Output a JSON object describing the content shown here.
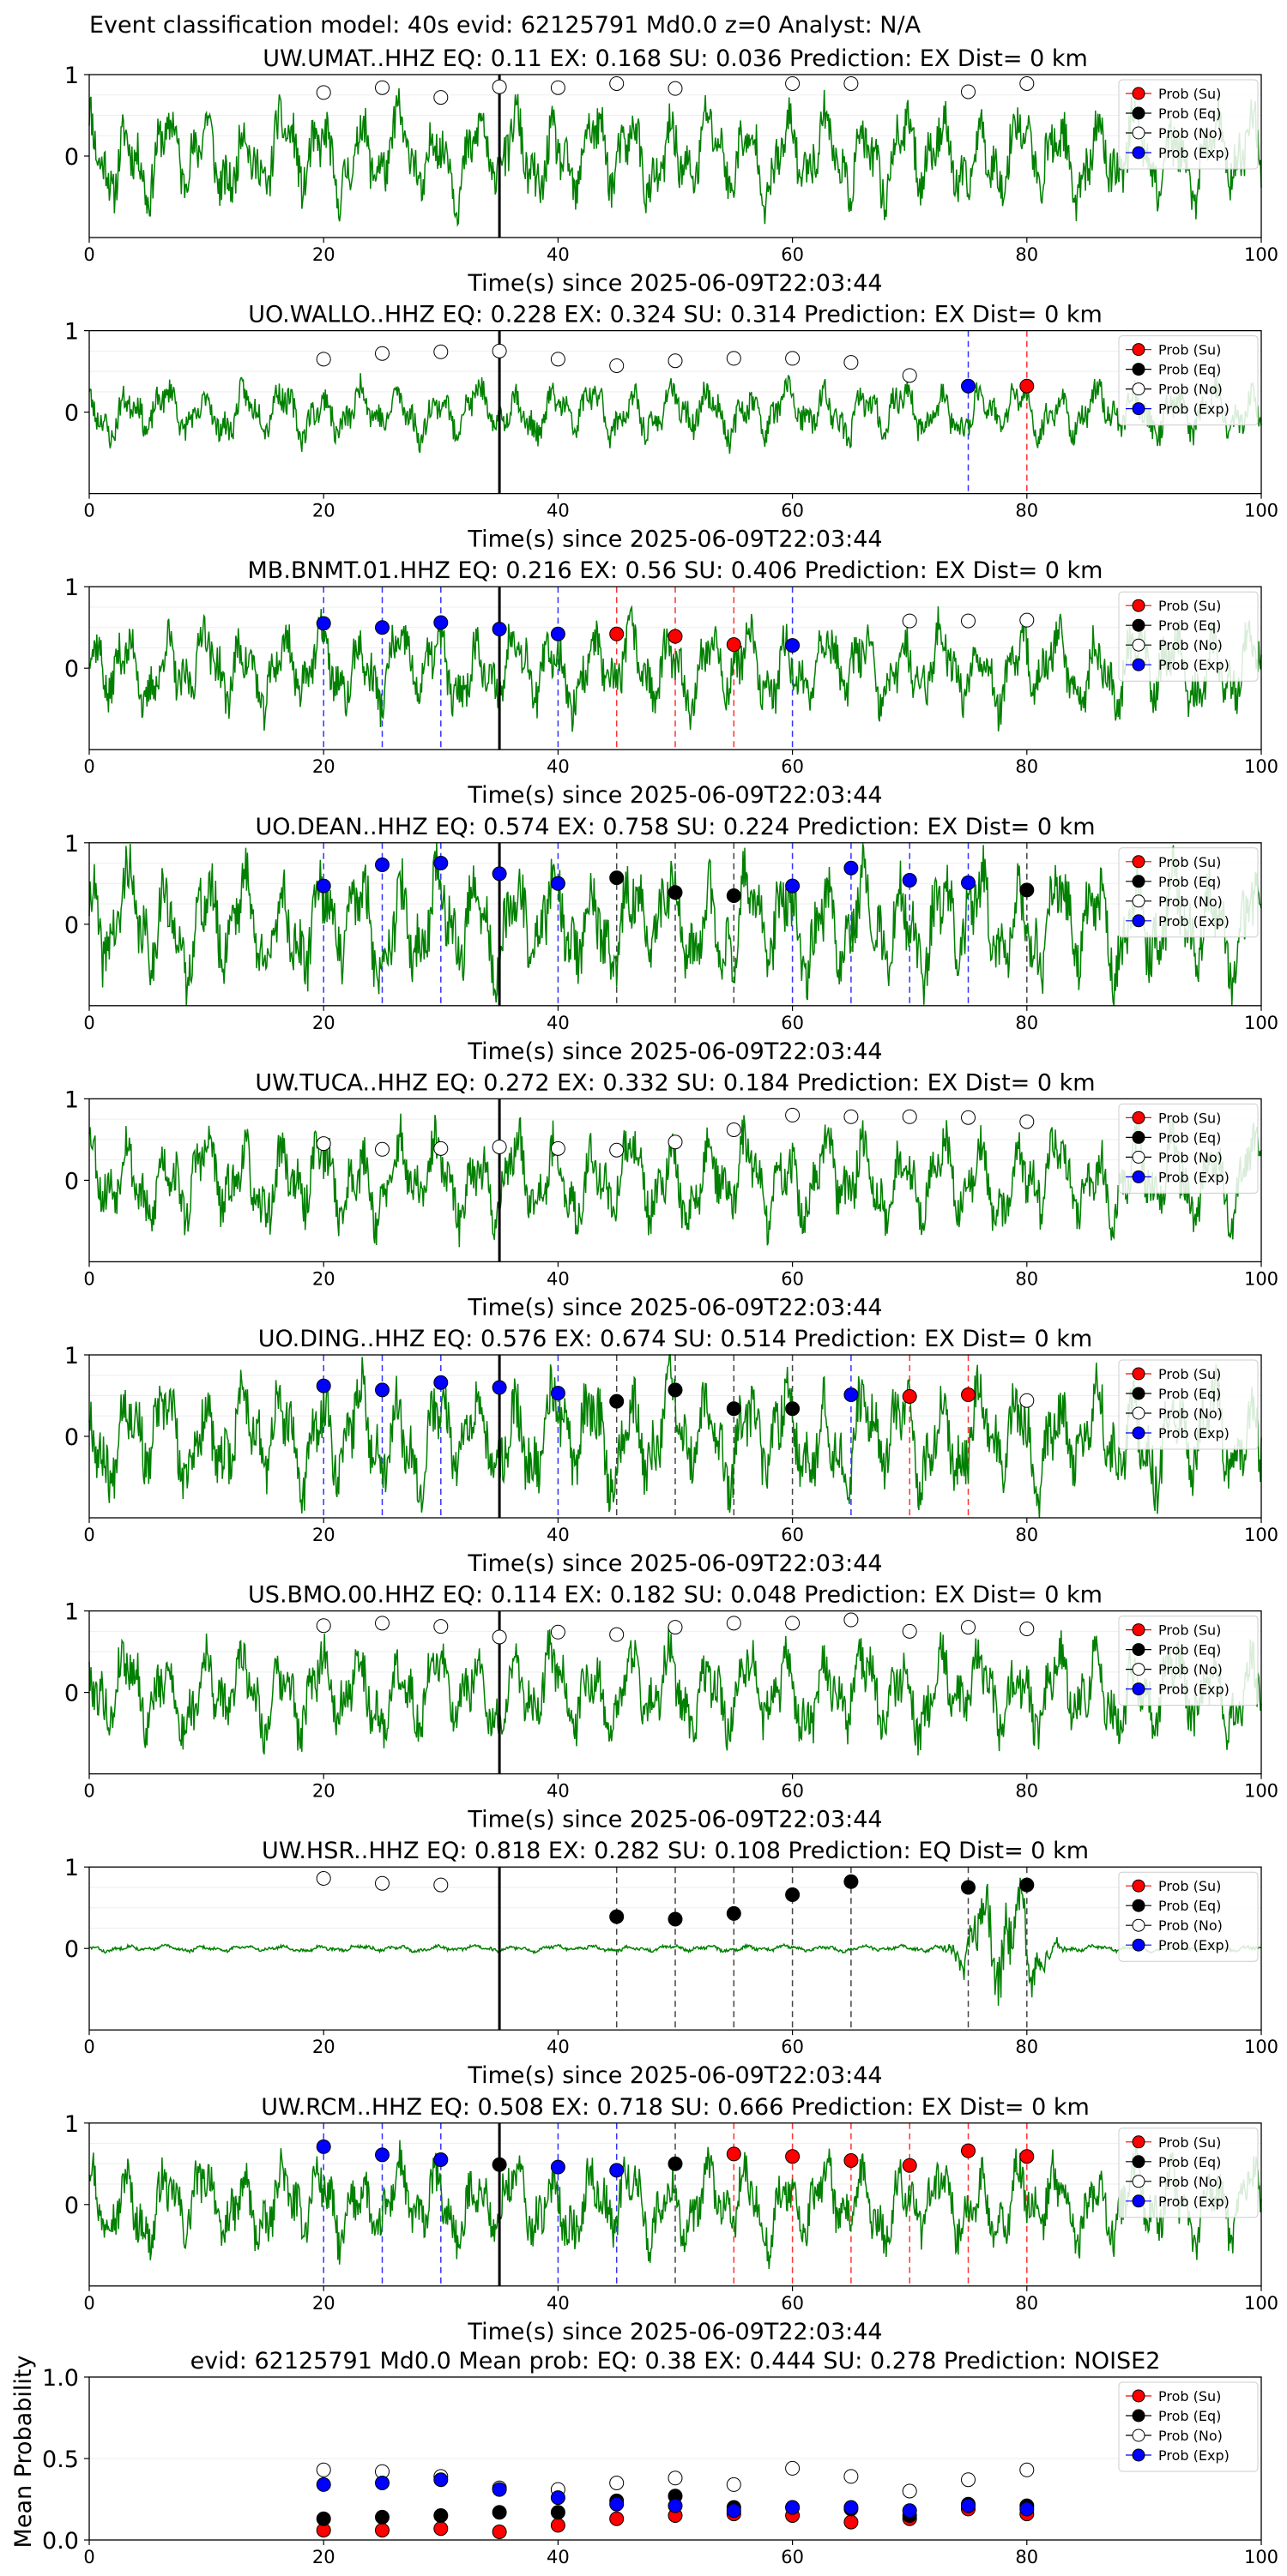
{
  "figure": {
    "suptitle": "Event classification model: 40s evid: 62125791 Md0.0 z=0 Analyst: N/A",
    "legend_entries": [
      "Prob (Su)",
      "Prob (Eq)",
      "Prob (No)",
      "Prob (Exp)"
    ],
    "colors": {
      "waveform": "#008000",
      "su": "#ff0000",
      "eq": "#000000",
      "no": "#ffffff",
      "exp": "#0000ff",
      "su_line": "#ff3333",
      "exp_line": "#3333ff",
      "eq_line": "#444444"
    }
  },
  "chart_data": [
    {
      "type": "line",
      "title": "UW.UMAT..HHZ   EQ: 0.11  EX: 0.168  SU: 0.036   Prediction: EX    Dist= 0 km",
      "xlabel": "Time(s) since 2025-06-09T22:03:44",
      "xlim": [
        0,
        100
      ],
      "ylim": [
        -1,
        1
      ],
      "xticks": [
        "0",
        "20",
        "40",
        "60",
        "80",
        "100"
      ],
      "yticks": [
        "1",
        "0"
      ],
      "pick_x": 35,
      "amplitude": 0.6,
      "seed": 11,
      "legend": "top-right",
      "points": [
        {
          "x": 20,
          "y": 0.78,
          "cls": "no"
        },
        {
          "x": 25,
          "y": 0.84,
          "cls": "no"
        },
        {
          "x": 30,
          "y": 0.72,
          "cls": "no"
        },
        {
          "x": 35,
          "y": 0.85,
          "cls": "no"
        },
        {
          "x": 40,
          "y": 0.84,
          "cls": "no"
        },
        {
          "x": 45,
          "y": 0.89,
          "cls": "no"
        },
        {
          "x": 50,
          "y": 0.83,
          "cls": "no"
        },
        {
          "x": 60,
          "y": 0.89,
          "cls": "no"
        },
        {
          "x": 65,
          "y": 0.89,
          "cls": "no"
        },
        {
          "x": 75,
          "y": 0.79,
          "cls": "no"
        },
        {
          "x": 80,
          "y": 0.89,
          "cls": "no"
        }
      ]
    },
    {
      "type": "line",
      "title": "UO.WALLO..HHZ   EQ: 0.228  EX: 0.324  SU: 0.314   Prediction: EX    Dist= 0 km",
      "xlabel": "Time(s) since 2025-06-09T22:03:44",
      "xlim": [
        0,
        100
      ],
      "ylim": [
        -1,
        1
      ],
      "xticks": [
        "0",
        "20",
        "40",
        "60",
        "80",
        "100"
      ],
      "yticks": [
        "1",
        "0"
      ],
      "pick_x": 35,
      "amplitude": 0.35,
      "seed": 23,
      "legend": "top-right",
      "points": [
        {
          "x": 20,
          "y": 0.65,
          "cls": "no"
        },
        {
          "x": 25,
          "y": 0.72,
          "cls": "no"
        },
        {
          "x": 30,
          "y": 0.74,
          "cls": "no"
        },
        {
          "x": 35,
          "y": 0.75,
          "cls": "no"
        },
        {
          "x": 40,
          "y": 0.65,
          "cls": "no"
        },
        {
          "x": 45,
          "y": 0.57,
          "cls": "no"
        },
        {
          "x": 50,
          "y": 0.63,
          "cls": "no"
        },
        {
          "x": 55,
          "y": 0.66,
          "cls": "no"
        },
        {
          "x": 60,
          "y": 0.66,
          "cls": "no"
        },
        {
          "x": 65,
          "y": 0.61,
          "cls": "no"
        },
        {
          "x": 70,
          "y": 0.45,
          "cls": "no"
        },
        {
          "x": 75,
          "y": 0.32,
          "cls": "exp"
        },
        {
          "x": 80,
          "y": 0.32,
          "cls": "su"
        }
      ]
    },
    {
      "type": "line",
      "title": "MB.BNMT.01.HHZ   EQ: 0.216  EX: 0.56  SU: 0.406   Prediction: EX    Dist= 0 km",
      "xlabel": "Time(s) since 2025-06-09T22:03:44",
      "xlim": [
        0,
        100
      ],
      "ylim": [
        -1,
        1
      ],
      "xticks": [
        "0",
        "20",
        "40",
        "60",
        "80",
        "100"
      ],
      "yticks": [
        "1",
        "0"
      ],
      "pick_x": 35,
      "amplitude": 0.55,
      "seed": 37,
      "legend": "top-right",
      "points": [
        {
          "x": 20,
          "y": 0.55,
          "cls": "exp"
        },
        {
          "x": 25,
          "y": 0.5,
          "cls": "exp"
        },
        {
          "x": 30,
          "y": 0.56,
          "cls": "exp"
        },
        {
          "x": 35,
          "y": 0.48,
          "cls": "exp"
        },
        {
          "x": 40,
          "y": 0.42,
          "cls": "exp"
        },
        {
          "x": 45,
          "y": 0.42,
          "cls": "su"
        },
        {
          "x": 50,
          "y": 0.39,
          "cls": "su"
        },
        {
          "x": 55,
          "y": 0.29,
          "cls": "su"
        },
        {
          "x": 60,
          "y": 0.28,
          "cls": "exp"
        },
        {
          "x": 70,
          "y": 0.58,
          "cls": "no"
        },
        {
          "x": 75,
          "y": 0.58,
          "cls": "no"
        },
        {
          "x": 80,
          "y": 0.59,
          "cls": "no"
        }
      ]
    },
    {
      "type": "line",
      "title": "UO.DEAN..HHZ   EQ: 0.574  EX: 0.758  SU: 0.224   Prediction: EX    Dist= 0 km",
      "xlabel": "Time(s) since 2025-06-09T22:03:44",
      "xlim": [
        0,
        100
      ],
      "ylim": [
        -1,
        1
      ],
      "xticks": [
        "0",
        "20",
        "40",
        "60",
        "80",
        "100"
      ],
      "yticks": [
        "1",
        "0"
      ],
      "pick_x": 35,
      "amplitude": 0.75,
      "seed": 41,
      "legend": "top-right",
      "points": [
        {
          "x": 20,
          "y": 0.47,
          "cls": "exp"
        },
        {
          "x": 25,
          "y": 0.73,
          "cls": "exp"
        },
        {
          "x": 30,
          "y": 0.75,
          "cls": "exp"
        },
        {
          "x": 35,
          "y": 0.62,
          "cls": "exp"
        },
        {
          "x": 40,
          "y": 0.5,
          "cls": "exp"
        },
        {
          "x": 45,
          "y": 0.57,
          "cls": "eq"
        },
        {
          "x": 50,
          "y": 0.39,
          "cls": "eq"
        },
        {
          "x": 55,
          "y": 0.35,
          "cls": "eq"
        },
        {
          "x": 60,
          "y": 0.47,
          "cls": "exp"
        },
        {
          "x": 65,
          "y": 0.69,
          "cls": "exp"
        },
        {
          "x": 70,
          "y": 0.54,
          "cls": "exp"
        },
        {
          "x": 75,
          "y": 0.51,
          "cls": "exp"
        },
        {
          "x": 80,
          "y": 0.42,
          "cls": "eq"
        }
      ]
    },
    {
      "type": "line",
      "title": "UW.TUCA..HHZ   EQ: 0.272  EX: 0.332  SU: 0.184   Prediction: EX    Dist= 0 km",
      "xlabel": "Time(s) since 2025-06-09T22:03:44",
      "xlim": [
        0,
        100
      ],
      "ylim": [
        -1,
        1
      ],
      "xticks": [
        "0",
        "20",
        "40",
        "60",
        "80",
        "100"
      ],
      "yticks": [
        "1",
        "0"
      ],
      "pick_x": 35,
      "amplitude": 0.6,
      "seed": 53,
      "legend": "top-right",
      "points": [
        {
          "x": 20,
          "y": 0.45,
          "cls": "no"
        },
        {
          "x": 25,
          "y": 0.38,
          "cls": "no"
        },
        {
          "x": 30,
          "y": 0.39,
          "cls": "no"
        },
        {
          "x": 35,
          "y": 0.41,
          "cls": "no"
        },
        {
          "x": 40,
          "y": 0.39,
          "cls": "no"
        },
        {
          "x": 45,
          "y": 0.37,
          "cls": "no"
        },
        {
          "x": 50,
          "y": 0.47,
          "cls": "no"
        },
        {
          "x": 55,
          "y": 0.62,
          "cls": "no"
        },
        {
          "x": 60,
          "y": 0.8,
          "cls": "no"
        },
        {
          "x": 65,
          "y": 0.78,
          "cls": "no"
        },
        {
          "x": 70,
          "y": 0.78,
          "cls": "no"
        },
        {
          "x": 75,
          "y": 0.77,
          "cls": "no"
        },
        {
          "x": 80,
          "y": 0.72,
          "cls": "no"
        }
      ]
    },
    {
      "type": "line",
      "title": "UO.DING..HHZ   EQ: 0.576  EX: 0.674  SU: 0.514   Prediction: EX    Dist= 0 km",
      "xlabel": "Time(s) since 2025-06-09T22:03:44",
      "xlim": [
        0,
        100
      ],
      "ylim": [
        -1,
        1
      ],
      "xticks": [
        "0",
        "20",
        "40",
        "60",
        "80",
        "100"
      ],
      "yticks": [
        "1",
        "0"
      ],
      "pick_x": 35,
      "amplitude": 0.7,
      "seed": 67,
      "legend": "top-right",
      "points": [
        {
          "x": 20,
          "y": 0.62,
          "cls": "exp"
        },
        {
          "x": 25,
          "y": 0.57,
          "cls": "exp"
        },
        {
          "x": 30,
          "y": 0.66,
          "cls": "exp"
        },
        {
          "x": 35,
          "y": 0.6,
          "cls": "exp"
        },
        {
          "x": 40,
          "y": 0.53,
          "cls": "exp"
        },
        {
          "x": 45,
          "y": 0.43,
          "cls": "eq"
        },
        {
          "x": 50,
          "y": 0.57,
          "cls": "eq"
        },
        {
          "x": 55,
          "y": 0.34,
          "cls": "eq"
        },
        {
          "x": 60,
          "y": 0.34,
          "cls": "eq"
        },
        {
          "x": 65,
          "y": 0.51,
          "cls": "exp"
        },
        {
          "x": 70,
          "y": 0.49,
          "cls": "su"
        },
        {
          "x": 75,
          "y": 0.51,
          "cls": "su"
        },
        {
          "x": 80,
          "y": 0.44,
          "cls": "no"
        }
      ]
    },
    {
      "type": "line",
      "title": "US.BMO.00.HHZ   EQ: 0.114  EX: 0.182  SU: 0.048   Prediction: EX    Dist= 0 km",
      "xlabel": "Time(s) since 2025-06-09T22:03:44",
      "xlim": [
        0,
        100
      ],
      "ylim": [
        -1,
        1
      ],
      "xticks": [
        "0",
        "20",
        "40",
        "60",
        "80",
        "100"
      ],
      "yticks": [
        "1",
        "0"
      ],
      "pick_x": 35,
      "amplitude": 0.6,
      "seed": 79,
      "legend": "top-right",
      "points": [
        {
          "x": 20,
          "y": 0.82,
          "cls": "no"
        },
        {
          "x": 25,
          "y": 0.85,
          "cls": "no"
        },
        {
          "x": 30,
          "y": 0.81,
          "cls": "no"
        },
        {
          "x": 35,
          "y": 0.68,
          "cls": "no"
        },
        {
          "x": 40,
          "y": 0.74,
          "cls": "no"
        },
        {
          "x": 45,
          "y": 0.71,
          "cls": "no"
        },
        {
          "x": 50,
          "y": 0.8,
          "cls": "no"
        },
        {
          "x": 55,
          "y": 0.85,
          "cls": "no"
        },
        {
          "x": 60,
          "y": 0.85,
          "cls": "no"
        },
        {
          "x": 65,
          "y": 0.89,
          "cls": "no"
        },
        {
          "x": 70,
          "y": 0.75,
          "cls": "no"
        },
        {
          "x": 75,
          "y": 0.8,
          "cls": "no"
        },
        {
          "x": 80,
          "y": 0.78,
          "cls": "no"
        }
      ]
    },
    {
      "type": "line",
      "title": "UW.HSR..HHZ   EQ: 0.818  EX: 0.282  SU: 0.108   Prediction: EQ    Dist= 0 km",
      "xlabel": "Time(s) since 2025-06-09T22:03:44",
      "xlim": [
        0,
        100
      ],
      "ylim": [
        -1,
        1
      ],
      "xticks": [
        "0",
        "20",
        "40",
        "60",
        "80",
        "100"
      ],
      "yticks": [
        "1",
        "0"
      ],
      "pick_x": 35,
      "amplitude": 0.04,
      "seed": 83,
      "burst": [
        72,
        84
      ],
      "legend": "top-right",
      "points": [
        {
          "x": 20,
          "y": 0.86,
          "cls": "no"
        },
        {
          "x": 25,
          "y": 0.8,
          "cls": "no"
        },
        {
          "x": 30,
          "y": 0.78,
          "cls": "no"
        },
        {
          "x": 45,
          "y": 0.39,
          "cls": "eq"
        },
        {
          "x": 50,
          "y": 0.36,
          "cls": "eq"
        },
        {
          "x": 55,
          "y": 0.43,
          "cls": "eq"
        },
        {
          "x": 60,
          "y": 0.66,
          "cls": "eq"
        },
        {
          "x": 65,
          "y": 0.82,
          "cls": "eq"
        },
        {
          "x": 75,
          "y": 0.75,
          "cls": "eq"
        },
        {
          "x": 80,
          "y": 0.78,
          "cls": "eq"
        }
      ]
    },
    {
      "type": "line",
      "title": "UW.RCM..HHZ   EQ: 0.508  EX: 0.718  SU: 0.666   Prediction: EX    Dist= 0 km",
      "xlabel": "Time(s) since 2025-06-09T22:03:44",
      "xlim": [
        0,
        100
      ],
      "ylim": [
        -1,
        1
      ],
      "xticks": [
        "0",
        "20",
        "40",
        "60",
        "80",
        "100"
      ],
      "yticks": [
        "1",
        "0"
      ],
      "pick_x": 35,
      "amplitude": 0.55,
      "seed": 97,
      "legend": "top-right",
      "points": [
        {
          "x": 20,
          "y": 0.71,
          "cls": "exp"
        },
        {
          "x": 25,
          "y": 0.61,
          "cls": "exp"
        },
        {
          "x": 30,
          "y": 0.55,
          "cls": "exp"
        },
        {
          "x": 35,
          "y": 0.49,
          "cls": "eq"
        },
        {
          "x": 40,
          "y": 0.46,
          "cls": "exp"
        },
        {
          "x": 45,
          "y": 0.42,
          "cls": "exp"
        },
        {
          "x": 50,
          "y": 0.5,
          "cls": "eq"
        },
        {
          "x": 55,
          "y": 0.62,
          "cls": "su"
        },
        {
          "x": 60,
          "y": 0.59,
          "cls": "su"
        },
        {
          "x": 65,
          "y": 0.54,
          "cls": "su"
        },
        {
          "x": 70,
          "y": 0.48,
          "cls": "su"
        },
        {
          "x": 75,
          "y": 0.66,
          "cls": "su"
        },
        {
          "x": 80,
          "y": 0.59,
          "cls": "su"
        }
      ]
    },
    {
      "type": "scatter",
      "title": "evid: 62125791  Md0.0   Mean prob:    EQ: 0.38  EX: 0.444  SU: 0.278   Prediction: NOISE2",
      "ylabel": "Mean Probability",
      "xlim": [
        0,
        100
      ],
      "ylim": [
        0,
        1
      ],
      "xticks": [
        "0",
        "20",
        "40",
        "60",
        "80",
        "100"
      ],
      "yticks": [
        "0.0",
        "0.5",
        "1.0"
      ],
      "legend": "top-right",
      "x": [
        20,
        25,
        30,
        35,
        40,
        45,
        50,
        55,
        60,
        65,
        70,
        75,
        80
      ],
      "series": [
        {
          "name": "Prob (Su)",
          "cls": "su",
          "values": [
            0.06,
            0.06,
            0.07,
            0.05,
            0.09,
            0.13,
            0.15,
            0.16,
            0.15,
            0.11,
            0.13,
            0.19,
            0.16
          ]
        },
        {
          "name": "Prob (Eq)",
          "cls": "eq",
          "values": [
            0.13,
            0.14,
            0.15,
            0.17,
            0.17,
            0.24,
            0.27,
            0.2,
            0.2,
            0.19,
            0.15,
            0.22,
            0.21
          ]
        },
        {
          "name": "Prob (No)",
          "cls": "no",
          "values": [
            0.43,
            0.42,
            0.39,
            0.32,
            0.31,
            0.35,
            0.38,
            0.34,
            0.44,
            0.39,
            0.3,
            0.37,
            0.43
          ]
        },
        {
          "name": "Prob (Exp)",
          "cls": "exp",
          "values": [
            0.34,
            0.35,
            0.37,
            0.31,
            0.26,
            0.22,
            0.21,
            0.18,
            0.2,
            0.2,
            0.18,
            0.21,
            0.19
          ]
        }
      ]
    }
  ]
}
